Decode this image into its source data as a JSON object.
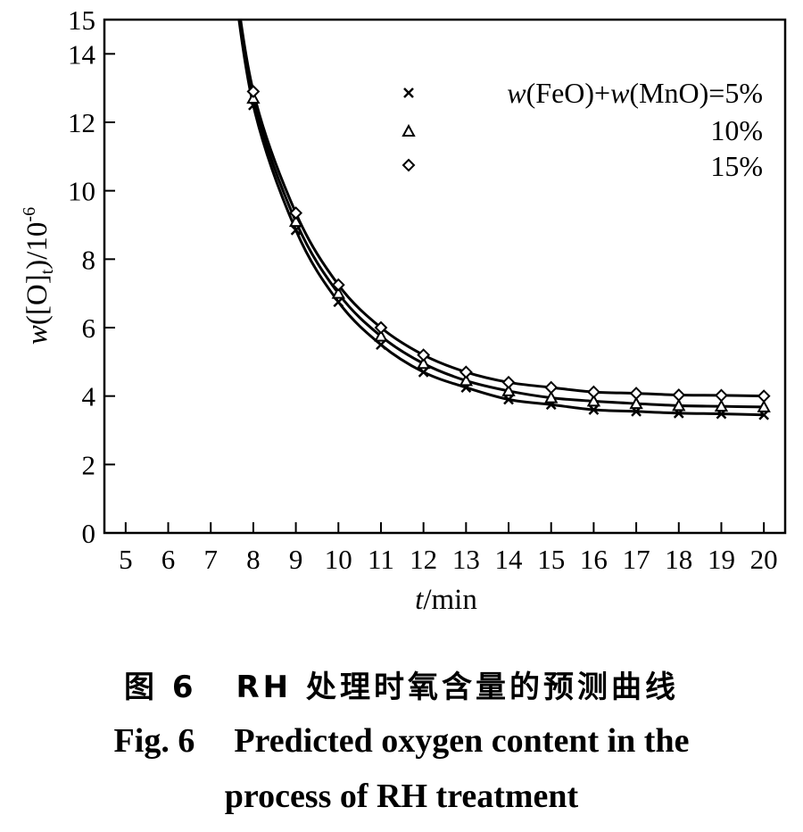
{
  "chart_data": {
    "type": "line",
    "xlabel_var": "t",
    "xlabel_unit": "/min",
    "ylabel_var": "w",
    "ylabel_mid": "([O]",
    "ylabel_sub": "t",
    "ylabel_end": ")/10",
    "ylabel_exp": "-6",
    "xlim": [
      4.5,
      20.5
    ],
    "ylim": [
      0,
      15
    ],
    "x_ticks": [
      5,
      6,
      7,
      8,
      9,
      10,
      11,
      12,
      13,
      14,
      15,
      16,
      17,
      18,
      19,
      20
    ],
    "y_ticks": [
      0,
      2,
      4,
      6,
      8,
      10,
      12,
      14,
      15
    ],
    "legend_position": "top-right",
    "series": [
      {
        "name": "w(FeO)+w(MnO)=5%",
        "marker": "x",
        "x": [
          8,
          9,
          10,
          11,
          12,
          13,
          14,
          15,
          16,
          17,
          18,
          19,
          20
        ],
        "y": [
          12.5,
          8.85,
          6.75,
          5.5,
          4.7,
          4.25,
          3.9,
          3.75,
          3.6,
          3.55,
          3.5,
          3.48,
          3.45
        ]
      },
      {
        "name": "10%",
        "marker": "triangle",
        "x": [
          8,
          9,
          10,
          11,
          12,
          13,
          14,
          15,
          16,
          17,
          18,
          19,
          20
        ],
        "y": [
          12.7,
          9.1,
          7.0,
          5.75,
          4.95,
          4.45,
          4.15,
          3.95,
          3.85,
          3.78,
          3.72,
          3.7,
          3.68
        ]
      },
      {
        "name": "15%",
        "marker": "diamond",
        "x": [
          8,
          9,
          10,
          11,
          12,
          13,
          14,
          15,
          16,
          17,
          18,
          19,
          20
        ],
        "y": [
          12.9,
          9.35,
          7.25,
          6.0,
          5.2,
          4.7,
          4.4,
          4.25,
          4.12,
          4.08,
          4.03,
          4.02,
          4.0
        ]
      }
    ],
    "legend": {
      "label_1_var1": "w",
      "label_1_mid": "(FeO)+",
      "label_1_var2": "w",
      "label_1_end": "(MnO)=5%",
      "label_2": "10%",
      "label_3": "15%"
    }
  },
  "caption": {
    "cn_num": "图 6",
    "cn_text": "RH 处理时氧含量的预测曲线",
    "en_num": "Fig. 6",
    "en_line1": "Predicted oxygen content in the",
    "en_line2": "process of RH treatment"
  }
}
